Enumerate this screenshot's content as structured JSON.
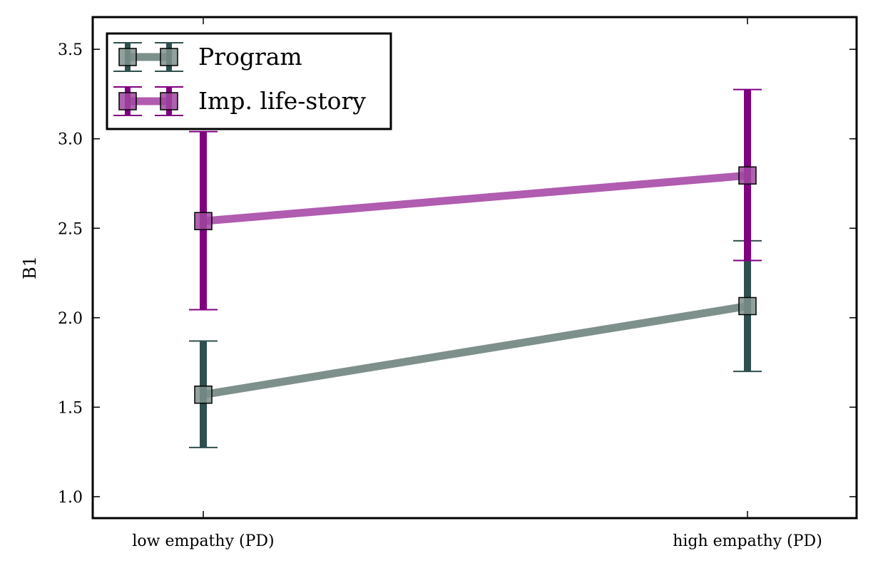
{
  "chart_data": {
    "type": "line",
    "title": "",
    "xlabel": "",
    "ylabel": "B1",
    "categories": [
      "low empathy (PD)",
      "high empathy (PD)"
    ],
    "ylim": [
      0.88,
      3.68
    ],
    "yticks": [
      "1.0",
      "1.5",
      "2.0",
      "2.5",
      "3.0",
      "3.5"
    ],
    "grid": false,
    "legend_position": "top-left",
    "series": [
      {
        "name": "Program",
        "values": [
          1.57,
          2.065
        ],
        "err_low": [
          1.275,
          1.7
        ],
        "err_high": [
          1.87,
          2.43
        ],
        "line_color": "#7e908c",
        "marker_color": "#7e908c",
        "error_color": "#2f4f4f"
      },
      {
        "name": "Imp. life-story",
        "values": [
          2.54,
          2.795
        ],
        "err_low": [
          2.045,
          2.32
        ],
        "err_high": [
          3.04,
          3.275
        ],
        "line_color": "#b05cb0",
        "marker_color": "#a048a0",
        "error_color": "#800080"
      }
    ]
  }
}
